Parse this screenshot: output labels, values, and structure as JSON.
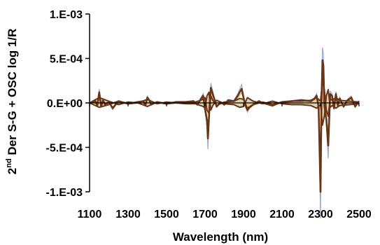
{
  "chart_data": {
    "type": "line",
    "title": "",
    "xlabel": "Wavelength (nm)",
    "ylabel_prefix": "2",
    "ylabel_superscript": "nd",
    "ylabel_rest": " Der S-G + OSC log 1/R",
    "xlim": [
      1100,
      2500
    ],
    "ylim": [
      -0.001,
      0.001
    ],
    "x_ticks": [
      1100,
      1300,
      1500,
      1700,
      1900,
      2100,
      2300,
      2500
    ],
    "x_tick_labels": [
      "1100",
      "1300",
      "1500",
      "1700",
      "1900",
      "2100",
      "2300",
      "2500"
    ],
    "y_ticks": [
      0.001,
      0.0005,
      0,
      -0.0005,
      -0.001
    ],
    "y_tick_labels": [
      "1.E-03",
      "5.E-04",
      "0.E+00",
      "-5.E-04",
      "-1.E-03"
    ],
    "grid": false,
    "legend": "none",
    "colors": {
      "main": "#6b3414",
      "fill": "#d9d3b0",
      "accent1": "#9aa6d8",
      "accent2": "#e8c040",
      "axis": "#000000"
    },
    "series": [
      {
        "x": [
          1100,
          1120,
          1130,
          1140,
          1150,
          1160,
          1170,
          1180,
          1200,
          1220,
          1250,
          1300,
          1350,
          1380,
          1390,
          1400,
          1410,
          1420,
          1450,
          1500,
          1550,
          1600,
          1640,
          1660,
          1680,
          1690,
          1700,
          1710,
          1715,
          1720,
          1725,
          1730,
          1740,
          1750,
          1760,
          1770,
          1780,
          1800,
          1820,
          1850,
          1870,
          1880,
          1890,
          1900,
          1910,
          1920,
          1930,
          1950,
          1980,
          2000,
          2050,
          2100,
          2150,
          2200,
          2250,
          2270,
          2280,
          2290,
          2295,
          2300,
          2305,
          2310,
          2315,
          2320,
          2330,
          2340,
          2350,
          2360,
          2370,
          2380,
          2390,
          2400,
          2420,
          2440,
          2460,
          2480,
          2500
        ],
        "y": [
          0,
          1e-05,
          2e-05,
          -3e-05,
          0.00012,
          -4e-05,
          3e-05,
          -2e-05,
          1e-05,
          -6e-05,
          2e-05,
          -1e-05,
          1e-05,
          2e-05,
          -3e-05,
          6e-05,
          3e-05,
          -2e-05,
          1e-05,
          -1e-05,
          1e-05,
          1e-05,
          2e-05,
          -2e-05,
          5e-05,
          8e-05,
          -7e-05,
          -0.0002,
          -0.0004,
          -0.00018,
          3e-05,
          0.00017,
          0.0001,
          3e-05,
          -4e-05,
          -2e-05,
          1e-05,
          -2e-05,
          3e-05,
          2e-05,
          8e-05,
          0.00012,
          0.00016,
          6e-05,
          -3e-05,
          -8e-05,
          -5e-05,
          -2e-05,
          2e-05,
          0,
          -3e-05,
          1e-05,
          2e-05,
          3e-05,
          2e-05,
          5e-05,
          8e-05,
          -5e-05,
          -0.0005,
          -0.001,
          1e-05,
          0.00048,
          0.00042,
          -3e-05,
          -0.00018,
          -0.00048,
          0.0001,
          8e-05,
          -6e-05,
          0.0001,
          -3e-05,
          5e-05,
          -4e-05,
          3e-05,
          6e-05,
          -4e-05,
          2e-05
        ]
      },
      {
        "x": [
          1100,
          1150,
          1200,
          1250,
          1300,
          1350,
          1400,
          1450,
          1500,
          1550,
          1600,
          1650,
          1690,
          1700,
          1710,
          1720,
          1730,
          1740,
          1760,
          1800,
          1850,
          1880,
          1900,
          1920,
          1950,
          2000,
          2050,
          2100,
          2150,
          2200,
          2250,
          2280,
          2300,
          2310,
          2320,
          2330,
          2340,
          2350,
          2360,
          2380,
          2400,
          2450,
          2500
        ],
        "y": [
          0,
          6e-05,
          2e-05,
          -2e-05,
          1e-05,
          0,
          4e-05,
          -1e-05,
          1e-05,
          0,
          1e-05,
          1e-05,
          4e-05,
          6e-05,
          -8e-05,
          -0.00012,
          8e-05,
          3e-05,
          -3e-05,
          1e-05,
          2e-05,
          5e-05,
          4e-05,
          -6e-05,
          -2e-05,
          1e-05,
          -2e-05,
          1e-05,
          2e-05,
          2e-05,
          3e-05,
          6e-05,
          2e-05,
          0.00025,
          0.00015,
          -8e-05,
          -0.00015,
          5e-05,
          3e-05,
          6e-05,
          3e-05,
          2e-05,
          1e-05
        ]
      },
      {
        "x": [
          1100,
          1150,
          1200,
          1250,
          1300,
          1350,
          1400,
          1450,
          1500,
          1550,
          1600,
          1650,
          1690,
          1700,
          1710,
          1720,
          1730,
          1740,
          1760,
          1800,
          1850,
          1880,
          1900,
          1920,
          1950,
          2000,
          2050,
          2100,
          2150,
          2200,
          2250,
          2280,
          2300,
          2310,
          2320,
          2330,
          2340,
          2350,
          2360,
          2380,
          2400,
          2450,
          2500
        ],
        "y": [
          0,
          -5e-05,
          -2e-05,
          2e-05,
          -1e-05,
          0,
          -4e-05,
          1e-05,
          -1e-05,
          0,
          -1e-05,
          -1e-05,
          -4e-05,
          -6e-05,
          8e-05,
          0.00012,
          -8e-05,
          -3e-05,
          3e-05,
          -1e-05,
          -2e-05,
          -5e-05,
          -4e-05,
          6e-05,
          2e-05,
          -1e-05,
          2e-05,
          -1e-05,
          -2e-05,
          -2e-05,
          -3e-05,
          -6e-05,
          -2e-05,
          -0.00025,
          -0.00015,
          8e-05,
          0.00015,
          -5e-05,
          -3e-05,
          -6e-05,
          -3e-05,
          -2e-05,
          -1e-05
        ]
      }
    ]
  }
}
